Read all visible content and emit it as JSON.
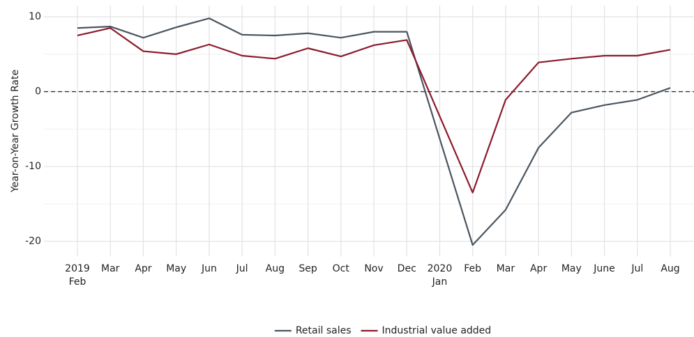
{
  "chart_data": {
    "type": "line",
    "y_label": "Year-on-Year Growth Rate",
    "categories": [
      "Feb",
      "Mar",
      "Apr",
      "May",
      "Jun",
      "Jul",
      "Aug",
      "Sep",
      "Oct",
      "Nov",
      "Dec",
      "Jan",
      "Feb",
      "Mar",
      "Apr",
      "May",
      "June",
      "Jul",
      "Aug"
    ],
    "category_years": [
      "2019",
      null,
      null,
      null,
      null,
      null,
      null,
      null,
      null,
      null,
      null,
      "2020",
      null,
      null,
      null,
      null,
      null,
      null,
      null
    ],
    "series": [
      {
        "name": "Retail sales",
        "color": "#4a5560",
        "values": [
          8.5,
          8.7,
          7.2,
          8.6,
          9.8,
          7.6,
          7.5,
          7.8,
          7.2,
          8.0,
          8.0,
          -6.3,
          -20.5,
          -15.8,
          -7.5,
          -2.8,
          -1.8,
          -1.1,
          0.5
        ]
      },
      {
        "name": "Industrial value added",
        "color": "#8b1a2b",
        "values": [
          7.5,
          8.5,
          5.4,
          5.0,
          6.3,
          4.8,
          4.4,
          5.8,
          4.7,
          6.2,
          6.9,
          -3.3,
          -13.5,
          -1.1,
          3.9,
          4.4,
          4.8,
          4.8,
          5.6
        ]
      }
    ],
    "ylim": [
      -22,
      11.5
    ],
    "yticks": [
      10,
      0,
      -10,
      -20
    ],
    "yminor": [
      5,
      -5,
      -15
    ],
    "reference_line": 0,
    "grid": true,
    "legend": "bottom"
  }
}
